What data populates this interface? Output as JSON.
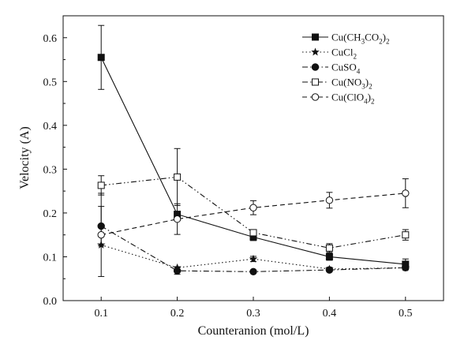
{
  "chart_data": {
    "type": "line",
    "title": "",
    "xlabel": "Counteranion (mol/L)",
    "ylabel": "Velocity (A)",
    "xlim": [
      0.05,
      0.55
    ],
    "ylim": [
      0.0,
      0.65
    ],
    "xticks": [
      0.1,
      0.2,
      0.3,
      0.4,
      0.5
    ],
    "xtick_labels": [
      "0.1",
      "0.2",
      "0.3",
      "0.4",
      "0.5"
    ],
    "yticks": [
      0.0,
      0.1,
      0.2,
      0.3,
      0.4,
      0.5,
      0.6
    ],
    "ytick_labels": [
      "0.0",
      "0.1",
      "0.2",
      "0.3",
      "0.4",
      "0.5",
      "0.6"
    ],
    "grid": false,
    "legend_position": "top-right",
    "x": [
      0.1,
      0.2,
      0.3,
      0.4,
      0.5
    ],
    "series": [
      {
        "name": "Cu(CH₃CO₂)₂",
        "legend": {
          "base": "Cu(CH",
          "parts": [
            {
              "t": "3",
              "sub": true
            },
            {
              "t": "CO",
              "sub": false
            },
            {
              "t": "2",
              "sub": true
            },
            {
              "t": ")",
              "sub": false
            },
            {
              "t": "2",
              "sub": true
            }
          ]
        },
        "values": [
          0.555,
          0.197,
          0.145,
          0.1,
          0.083
        ],
        "errors": [
          0.073,
          0.0,
          0.008,
          0.008,
          0.012
        ],
        "marker": "square-filled",
        "line": "solid"
      },
      {
        "name": "CuCl₂",
        "legend": {
          "base": "CuCl",
          "parts": [
            {
              "t": "2",
              "sub": true
            }
          ]
        },
        "values": [
          0.127,
          0.075,
          0.095,
          0.072,
          0.075
        ],
        "errors": [
          0.0,
          0.0,
          0.006,
          0.004,
          0.004
        ],
        "marker": "star",
        "line": "dotted"
      },
      {
        "name": "CuSO₄",
        "legend": {
          "base": "CuSO",
          "parts": [
            {
              "t": "4",
              "sub": true
            }
          ]
        },
        "values": [
          0.17,
          0.068,
          0.066,
          0.07,
          0.075
        ],
        "errors": [
          0.045,
          0.008,
          0.0,
          0.004,
          0.005
        ],
        "marker": "circle-filled",
        "line": "dashdot"
      },
      {
        "name": "Cu(NO₃)₂",
        "legend": {
          "base": "Cu(NO",
          "parts": [
            {
              "t": "3",
              "sub": true
            },
            {
              "t": ")",
              "sub": false
            },
            {
              "t": "2",
              "sub": true
            }
          ]
        },
        "values": [
          0.263,
          0.282,
          0.155,
          0.12,
          0.15
        ],
        "errors": [
          0.022,
          0.065,
          0.005,
          0.01,
          0.012
        ],
        "marker": "square-open",
        "line": "dashdotdot"
      },
      {
        "name": "Cu(ClO₄)₂",
        "legend": {
          "base": "Cu(ClO",
          "parts": [
            {
              "t": "4",
              "sub": true
            },
            {
              "t": ")",
              "sub": false
            },
            {
              "t": "2",
              "sub": true
            }
          ]
        },
        "values": [
          0.15,
          0.186,
          0.212,
          0.229,
          0.245
        ],
        "errors": [
          0.095,
          0.035,
          0.016,
          0.018,
          0.033
        ],
        "marker": "circle-open",
        "line": "dashed"
      }
    ]
  }
}
